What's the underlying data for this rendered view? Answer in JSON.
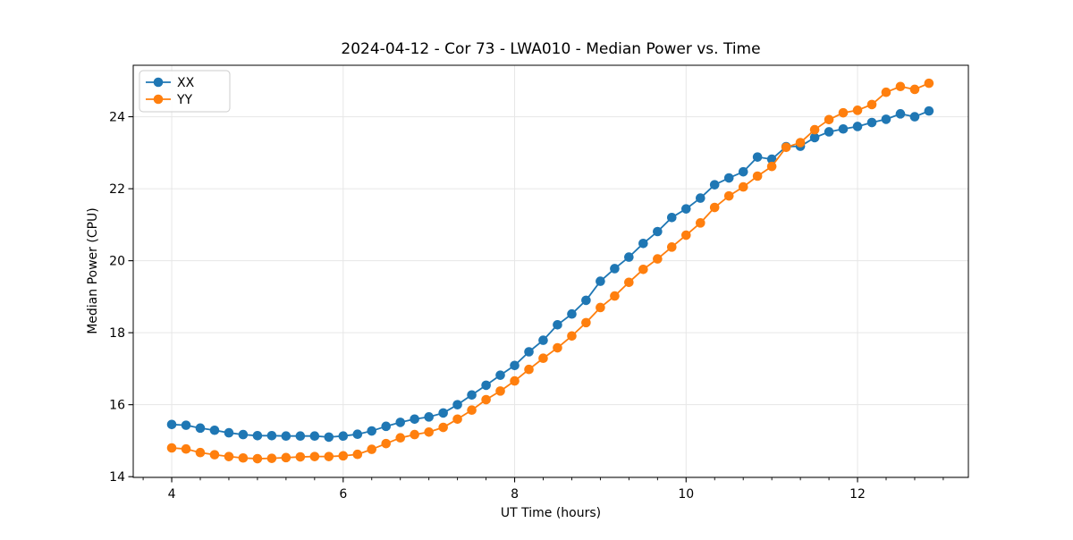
{
  "title": "2024-04-12 - Cor 73 - LWA010 - Median Power vs. Time",
  "axes": {
    "xlim": [
      3.551,
      13.293
    ],
    "ylim": [
      13.98,
      25.43
    ],
    "x_major_ticks": [
      4,
      6,
      8,
      10,
      12
    ],
    "x_minor_tick_step": 0.3333,
    "y_major_ticks": [
      14,
      16,
      18,
      20,
      22,
      24
    ],
    "grid": "major",
    "grid_color": "#e6e6e6",
    "spine_color": "#000000"
  },
  "legend": {
    "position": "upper left",
    "border_color": "#cccccc",
    "background": "#ffffff"
  },
  "chart_data": {
    "type": "line",
    "title": "2024-04-12 - Cor 73 - LWA010 - Median Power vs. Time",
    "xlabel": "UT Time (hours)",
    "ylabel": "Median Power (CPU)",
    "xlim": [
      3.551,
      13.293
    ],
    "ylim": [
      13.98,
      25.43
    ],
    "grid": true,
    "legend_position": "upper left",
    "marker": "circle",
    "x": [
      4.0,
      4.167,
      4.333,
      4.5,
      4.667,
      4.833,
      5.0,
      5.167,
      5.333,
      5.5,
      5.667,
      5.833,
      6.0,
      6.167,
      6.333,
      6.5,
      6.667,
      6.833,
      7.0,
      7.167,
      7.333,
      7.5,
      7.667,
      7.833,
      8.0,
      8.167,
      8.333,
      8.5,
      8.667,
      8.833,
      9.0,
      9.167,
      9.333,
      9.5,
      9.667,
      9.833,
      10.0,
      10.167,
      10.333,
      10.5,
      10.667,
      10.833,
      11.0,
      11.167,
      11.333,
      11.5,
      11.667,
      11.833,
      12.0,
      12.167,
      12.333,
      12.5,
      12.667,
      12.833
    ],
    "series": [
      {
        "name": "XX",
        "color": "#1f77b4",
        "values": [
          15.45,
          15.43,
          15.35,
          15.29,
          15.22,
          15.17,
          15.14,
          15.14,
          15.13,
          15.13,
          15.13,
          15.1,
          15.13,
          15.18,
          15.27,
          15.4,
          15.51,
          15.6,
          15.66,
          15.77,
          16.0,
          16.27,
          16.54,
          16.82,
          17.09,
          17.47,
          17.79,
          18.22,
          18.52,
          18.9,
          19.43,
          19.78,
          20.1,
          20.48,
          20.81,
          21.2,
          21.44,
          21.74,
          22.11,
          22.3,
          22.47,
          22.88,
          22.82,
          23.17,
          23.18,
          23.42,
          23.58,
          23.66,
          23.73,
          23.84,
          23.93,
          24.08,
          24.0,
          24.16
        ]
      },
      {
        "name": "YY",
        "color": "#ff7f0e",
        "values": [
          14.8,
          14.77,
          14.67,
          14.61,
          14.56,
          14.52,
          14.5,
          14.51,
          14.53,
          14.55,
          14.56,
          14.56,
          14.58,
          14.62,
          14.76,
          14.92,
          15.08,
          15.17,
          15.24,
          15.37,
          15.6,
          15.85,
          16.14,
          16.38,
          16.66,
          16.98,
          17.29,
          17.58,
          17.91,
          18.28,
          18.7,
          19.02,
          19.4,
          19.76,
          20.05,
          20.38,
          20.71,
          21.05,
          21.48,
          21.8,
          22.05,
          22.35,
          22.62,
          23.15,
          23.28,
          23.64,
          23.92,
          24.11,
          24.18,
          24.34,
          24.68,
          24.84,
          24.76,
          24.93
        ]
      }
    ]
  }
}
